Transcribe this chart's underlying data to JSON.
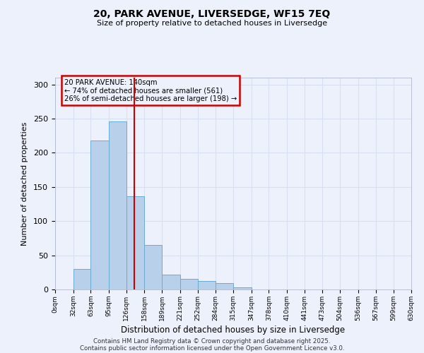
{
  "title": "20, PARK AVENUE, LIVERSEDGE, WF15 7EQ",
  "subtitle": "Size of property relative to detached houses in Liversedge",
  "bar_values": [
    0,
    30,
    218,
    246,
    136,
    65,
    22,
    15,
    12,
    9,
    3,
    0,
    0,
    0,
    0,
    0,
    0,
    0,
    0,
    0
  ],
  "bin_edges": [
    0,
    32,
    63,
    95,
    126,
    158,
    189,
    221,
    252,
    284,
    315,
    347,
    378,
    410,
    441,
    473,
    504,
    536,
    567,
    599,
    630
  ],
  "tick_labels": [
    "0sqm",
    "32sqm",
    "63sqm",
    "95sqm",
    "126sqm",
    "158sqm",
    "189sqm",
    "221sqm",
    "252sqm",
    "284sqm",
    "315sqm",
    "347sqm",
    "378sqm",
    "410sqm",
    "441sqm",
    "473sqm",
    "504sqm",
    "536sqm",
    "567sqm",
    "599sqm",
    "630sqm"
  ],
  "xlabel": "Distribution of detached houses by size in Liversedge",
  "ylabel": "Number of detached properties",
  "bar_color": "#b8d0ea",
  "bar_edge_color": "#6aabd2",
  "property_line_x": 140,
  "annotation_title": "20 PARK AVENUE: 140sqm",
  "annotation_line1": "← 74% of detached houses are smaller (561)",
  "annotation_line2": "26% of semi-detached houses are larger (198) →",
  "vline_color": "#cc0000",
  "box_edge_color": "#cc0000",
  "background_color": "#edf1fb",
  "grid_color": "#d8dff0",
  "ylim": [
    0,
    310
  ],
  "yticks": [
    0,
    50,
    100,
    150,
    200,
    250,
    300
  ],
  "footer1": "Contains HM Land Registry data © Crown copyright and database right 2025.",
  "footer2": "Contains public sector information licensed under the Open Government Licence v3.0."
}
